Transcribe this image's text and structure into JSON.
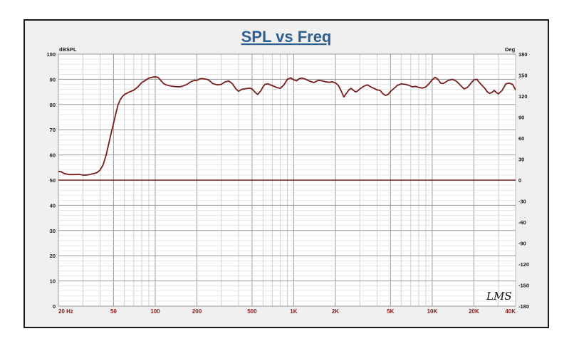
{
  "chart_data": {
    "type": "line",
    "title": "SPL vs Freq",
    "left_unit": "dBSPL",
    "right_unit": "Deg",
    "x_scale": "log",
    "xlim": [
      20,
      40000
    ],
    "ylim": [
      0,
      100
    ],
    "y2lim": [
      -180,
      180
    ],
    "grid": true,
    "x_ticks": [
      {
        "value": 20,
        "label": "20  Hz"
      },
      {
        "value": 50,
        "label": "50"
      },
      {
        "value": 100,
        "label": "100"
      },
      {
        "value": 200,
        "label": "200"
      },
      {
        "value": 500,
        "label": "500"
      },
      {
        "value": 1000,
        "label": "1K"
      },
      {
        "value": 2000,
        "label": "2K"
      },
      {
        "value": 5000,
        "label": "5K"
      },
      {
        "value": 10000,
        "label": "10K"
      },
      {
        "value": 20000,
        "label": "20K"
      },
      {
        "value": 40000,
        "label": "40K"
      }
    ],
    "y_ticks": [
      0,
      10,
      20,
      30,
      40,
      50,
      60,
      70,
      80,
      90,
      100
    ],
    "y2_ticks": [
      -180,
      -150,
      -120,
      -90,
      -60,
      -30,
      0,
      30,
      60,
      90,
      120,
      150,
      180
    ],
    "series": [
      {
        "color": "#7a1c1c",
        "axis": "left",
        "points": [
          [
            20,
            53.5
          ],
          [
            21,
            53.3
          ],
          [
            22,
            52.6
          ],
          [
            24,
            52.2
          ],
          [
            26,
            52.2
          ],
          [
            28,
            52.3
          ],
          [
            30,
            52.0
          ],
          [
            32,
            52.0
          ],
          [
            34,
            52.3
          ],
          [
            36,
            52.6
          ],
          [
            38,
            53.0
          ],
          [
            40,
            54.0
          ],
          [
            42,
            56.0
          ],
          [
            44,
            59.5
          ],
          [
            46,
            64.0
          ],
          [
            48,
            68.5
          ],
          [
            50,
            72.5
          ],
          [
            52,
            76.5
          ],
          [
            54,
            80.0
          ],
          [
            56,
            82.0
          ],
          [
            58,
            83.2
          ],
          [
            60,
            84.0
          ],
          [
            64,
            84.8
          ],
          [
            70,
            85.7
          ],
          [
            75,
            87.0
          ],
          [
            80,
            88.7
          ],
          [
            85,
            89.6
          ],
          [
            90,
            90.5
          ],
          [
            95,
            90.8
          ],
          [
            100,
            91.0
          ],
          [
            105,
            90.7
          ],
          [
            110,
            89.5
          ],
          [
            115,
            88.3
          ],
          [
            120,
            87.8
          ],
          [
            130,
            87.3
          ],
          [
            140,
            87.1
          ],
          [
            150,
            87.0
          ],
          [
            160,
            87.4
          ],
          [
            170,
            88.0
          ],
          [
            180,
            89.0
          ],
          [
            190,
            89.5
          ],
          [
            200,
            89.6
          ],
          [
            210,
            90.2
          ],
          [
            220,
            90.3
          ],
          [
            240,
            89.9
          ],
          [
            250,
            89.2
          ],
          [
            260,
            88.3
          ],
          [
            280,
            87.8
          ],
          [
            300,
            88.0
          ],
          [
            320,
            89.0
          ],
          [
            340,
            89.3
          ],
          [
            360,
            88.3
          ],
          [
            380,
            86.4
          ],
          [
            400,
            85.2
          ],
          [
            420,
            86.0
          ],
          [
            450,
            86.3
          ],
          [
            480,
            86.5
          ],
          [
            500,
            86.2
          ],
          [
            530,
            84.7
          ],
          [
            550,
            84.0
          ],
          [
            580,
            85.5
          ],
          [
            600,
            87.0
          ],
          [
            620,
            88.0
          ],
          [
            650,
            88.2
          ],
          [
            700,
            87.5
          ],
          [
            750,
            86.8
          ],
          [
            800,
            86.4
          ],
          [
            850,
            87.8
          ],
          [
            900,
            90.0
          ],
          [
            950,
            90.6
          ],
          [
            1000,
            89.8
          ],
          [
            1050,
            89.4
          ],
          [
            1100,
            90.3
          ],
          [
            1150,
            90.5
          ],
          [
            1200,
            90.2
          ],
          [
            1300,
            89.3
          ],
          [
            1400,
            88.7
          ],
          [
            1500,
            89.6
          ],
          [
            1600,
            89.4
          ],
          [
            1700,
            89.0
          ],
          [
            1800,
            88.8
          ],
          [
            1900,
            89.0
          ],
          [
            2000,
            88.6
          ],
          [
            2100,
            87.6
          ],
          [
            2200,
            85.4
          ],
          [
            2300,
            83.0
          ],
          [
            2400,
            84.4
          ],
          [
            2500,
            85.8
          ],
          [
            2600,
            86.4
          ],
          [
            2700,
            85.6
          ],
          [
            2800,
            85.0
          ],
          [
            2900,
            85.4
          ],
          [
            3000,
            86.2
          ],
          [
            3200,
            87.2
          ],
          [
            3400,
            87.8
          ],
          [
            3600,
            87.0
          ],
          [
            3800,
            86.4
          ],
          [
            4000,
            85.8
          ],
          [
            4200,
            85.6
          ],
          [
            4400,
            84.3
          ],
          [
            4600,
            83.6
          ],
          [
            4800,
            84.0
          ],
          [
            5000,
            85.2
          ],
          [
            5300,
            86.4
          ],
          [
            5600,
            87.6
          ],
          [
            6000,
            88.2
          ],
          [
            6400,
            88.0
          ],
          [
            6800,
            87.6
          ],
          [
            7200,
            87.0
          ],
          [
            7600,
            87.2
          ],
          [
            8000,
            86.8
          ],
          [
            8500,
            86.5
          ],
          [
            9000,
            87.0
          ],
          [
            9500,
            88.3
          ],
          [
            10000,
            89.8
          ],
          [
            10500,
            90.8
          ],
          [
            11000,
            90.0
          ],
          [
            11500,
            88.5
          ],
          [
            12000,
            88.3
          ],
          [
            13000,
            89.5
          ],
          [
            14000,
            90.0
          ],
          [
            15000,
            89.2
          ],
          [
            16000,
            87.6
          ],
          [
            17000,
            86.2
          ],
          [
            18000,
            86.8
          ],
          [
            19000,
            88.4
          ],
          [
            20000,
            89.8
          ],
          [
            21000,
            90.0
          ],
          [
            22000,
            88.6
          ],
          [
            24000,
            86.4
          ],
          [
            25000,
            85.0
          ],
          [
            26000,
            84.4
          ],
          [
            27000,
            84.8
          ],
          [
            28000,
            85.6
          ],
          [
            29000,
            84.8
          ],
          [
            30000,
            84.2
          ],
          [
            32000,
            85.6
          ],
          [
            34000,
            88.2
          ],
          [
            36000,
            88.5
          ],
          [
            38000,
            88.0
          ],
          [
            40000,
            85.8
          ]
        ]
      },
      {
        "color": "#7a1c1c",
        "axis": "right",
        "points": [
          [
            20,
            0
          ],
          [
            40000,
            0
          ]
        ]
      }
    ],
    "watermark": "LMS"
  }
}
